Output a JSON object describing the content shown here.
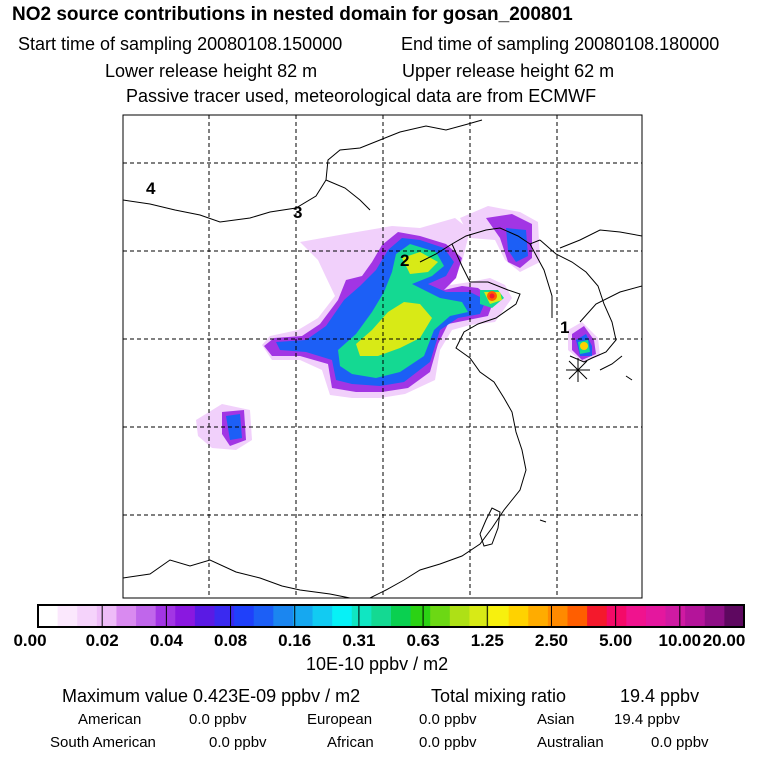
{
  "header": {
    "title": "NO2 source contributions in nested domain for gosan_200801",
    "start_time": "Start time of sampling 20080108.150000",
    "end_time": "End time of sampling 20080108.180000",
    "lower_height": "Lower release height   82 m",
    "upper_height": "Upper release height   62 m",
    "tracer_note": "Passive tracer used, meteorological data are from ECMWF"
  },
  "map": {
    "region_labels": [
      "1",
      "2",
      "3",
      "4"
    ],
    "receptor_marker": "asterisk"
  },
  "colorbar": {
    "swatches": [
      "#ffffff",
      "#fbe8fd",
      "#f5d3fb",
      "#eebcf8",
      "#d98af0",
      "#c066eb",
      "#a235e4",
      "#8a18e0",
      "#5a1ae4",
      "#3a2af0",
      "#1f40fa",
      "#1c5ff6",
      "#1b86f0",
      "#16a8f0",
      "#12cbf2",
      "#07f1f6",
      "#10e6c2",
      "#14d992",
      "#0ad050",
      "#2bd214",
      "#6cd814",
      "#aee016",
      "#d8ea16",
      "#f7f00e",
      "#ffd200",
      "#ffac00",
      "#ff8a00",
      "#ff5e00",
      "#f4192c",
      "#f40a68",
      "#f0138e",
      "#e4179e",
      "#cf1aa2",
      "#b4149a",
      "#8e0f86",
      "#5e0860"
    ],
    "tick_labels": [
      "0.00",
      "0.02",
      "0.04",
      "0.08",
      "0.16",
      "0.31",
      "0.63",
      "1.25",
      "2.50",
      "5.00",
      "10.00",
      "20.00"
    ],
    "units": "10E-10 ppbv / m2"
  },
  "stats": {
    "maximum": "Maximum value  0.423E-09 ppbv / m2",
    "total": "Total mixing ratio",
    "total_value": "19.4 ppbv",
    "american_label": "American",
    "american_value": "0.0 ppbv",
    "european_label": "European",
    "european_value": "0.0 ppbv",
    "asian_label": "Asian",
    "asian_value": "19.4 ppbv",
    "south_american_label": "South American",
    "south_american_value": "0.0 ppbv",
    "african_label": "African",
    "african_value": "0.0 ppbv",
    "australian_label": "Australian",
    "australian_value": "0.0 ppbv"
  }
}
